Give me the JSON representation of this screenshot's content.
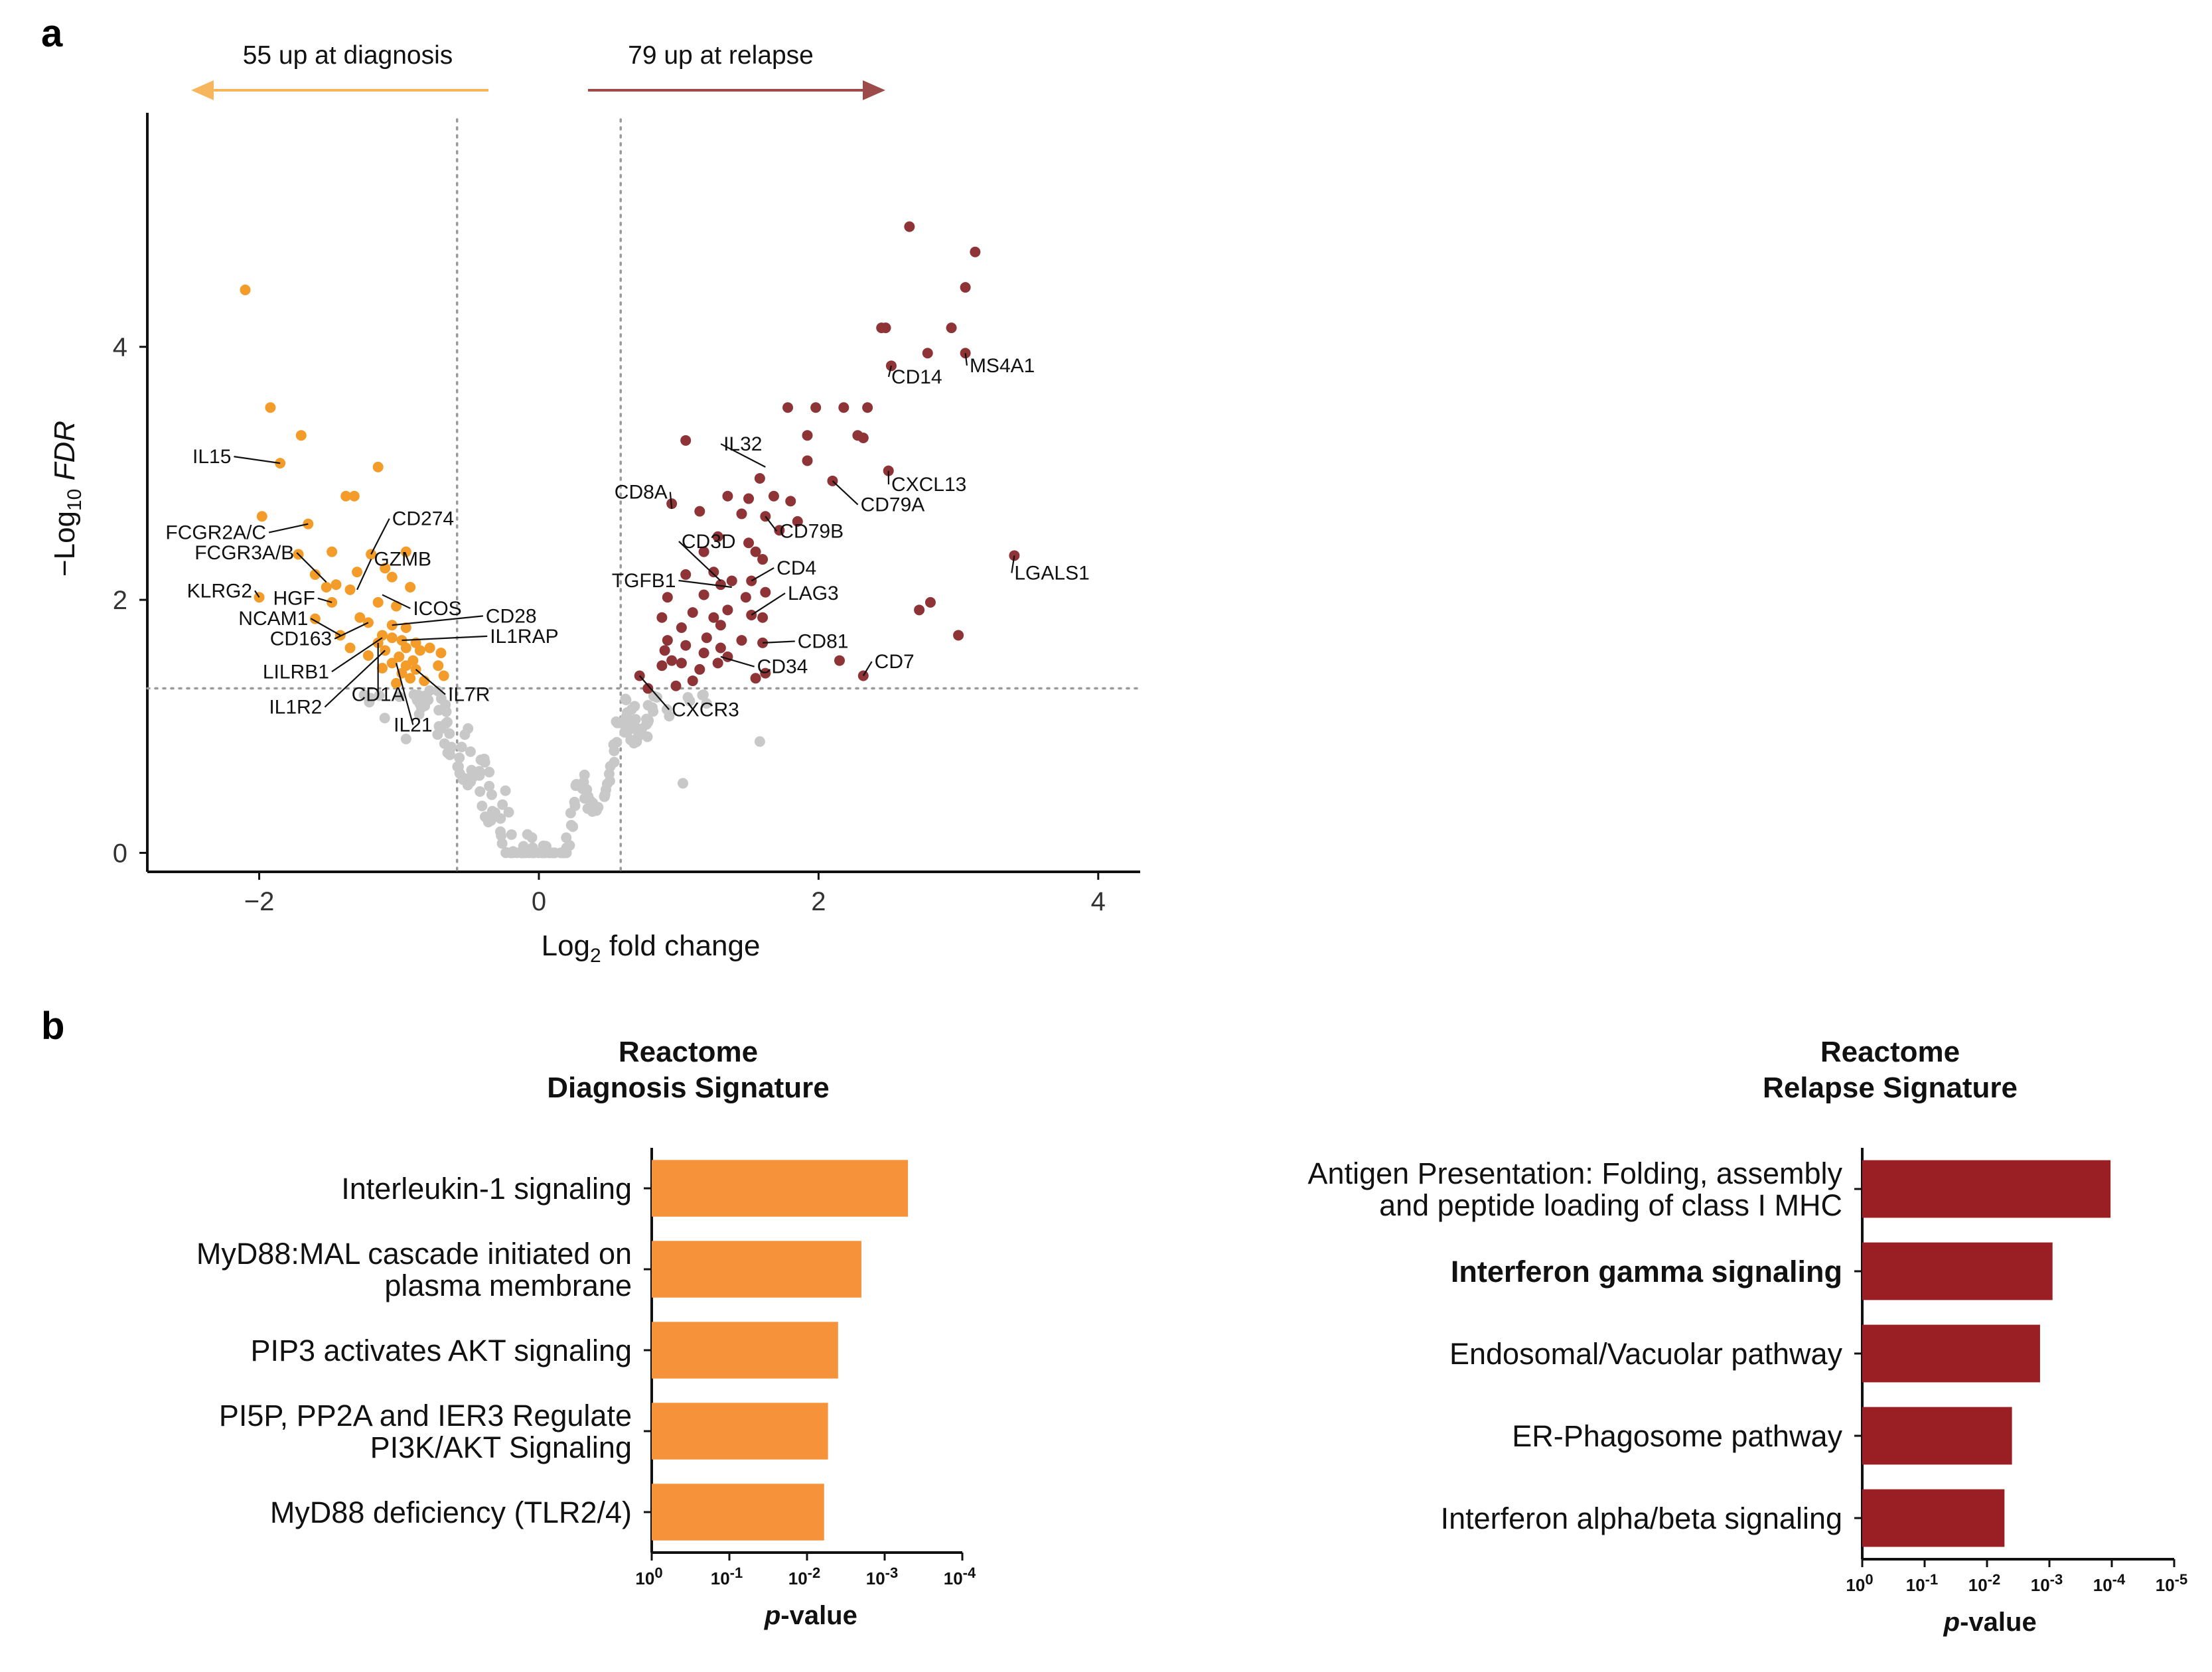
{
  "panels": {
    "a": "a",
    "b": "b"
  },
  "chart_data": [
    {
      "type": "scatter",
      "name": "volcano",
      "xlabel": "Log",
      "xlabel_sub": "2",
      "xlabel_rest": " fold change",
      "ylabel_prefix": "−Log",
      "ylabel_sub": "10",
      "ylabel_rest": "FDR",
      "xlim": [
        -2.8,
        4.3
      ],
      "ylim": [
        -0.15,
        5.85
      ],
      "xticks": [
        -2,
        0,
        2,
        4
      ],
      "yticks": [
        0,
        2,
        4
      ],
      "fc_threshold": 0.585,
      "fdr_threshold": 1.3,
      "arrows": {
        "left_label": "55 up at diagnosis",
        "right_label": "79 up at relapse",
        "left_color": "#F7B55E",
        "right_color": "#9C4A4A"
      },
      "colors": {
        "down": "#F39C2A",
        "up": "#8E3336",
        "ns": "#C8C8C8"
      },
      "down_points": [
        [
          -2.1,
          4.45
        ],
        [
          -1.92,
          3.52
        ],
        [
          -1.7,
          3.3
        ],
        [
          -1.85,
          3.08
        ],
        [
          -1.15,
          3.05
        ],
        [
          -1.38,
          2.82
        ],
        [
          -1.32,
          2.82
        ],
        [
          -1.98,
          2.66
        ],
        [
          -1.65,
          2.6
        ],
        [
          -1.72,
          2.36
        ],
        [
          -1.48,
          2.38
        ],
        [
          -1.2,
          2.36
        ],
        [
          -0.95,
          2.38
        ],
        [
          -1.6,
          2.2
        ],
        [
          -1.52,
          2.1
        ],
        [
          -1.45,
          2.12
        ],
        [
          -1.35,
          2.08
        ],
        [
          -1.3,
          2.22
        ],
        [
          -1.1,
          2.25
        ],
        [
          -1.05,
          2.18
        ],
        [
          -0.92,
          2.1
        ],
        [
          -2.0,
          2.02
        ],
        [
          -1.48,
          1.98
        ],
        [
          -1.15,
          1.98
        ],
        [
          -1.02,
          1.95
        ],
        [
          -1.6,
          1.85
        ],
        [
          -1.28,
          1.86
        ],
        [
          -1.22,
          1.82
        ],
        [
          -1.05,
          1.8
        ],
        [
          -0.95,
          1.78
        ],
        [
          -1.42,
          1.72
        ],
        [
          -1.12,
          1.72
        ],
        [
          -1.05,
          1.7
        ],
        [
          -0.98,
          1.68
        ],
        [
          -0.88,
          1.66
        ],
        [
          -1.15,
          1.66
        ],
        [
          -1.35,
          1.62
        ],
        [
          -1.1,
          1.6
        ],
        [
          -0.95,
          1.62
        ],
        [
          -0.85,
          1.6
        ],
        [
          -0.78,
          1.62
        ],
        [
          -0.7,
          1.58
        ],
        [
          -1.22,
          1.56
        ],
        [
          -1.0,
          1.55
        ],
        [
          -0.9,
          1.52
        ],
        [
          -1.05,
          1.5
        ],
        [
          -0.95,
          1.48
        ],
        [
          -0.72,
          1.48
        ],
        [
          -1.12,
          1.46
        ],
        [
          -0.88,
          1.45
        ],
        [
          -0.98,
          1.42
        ],
        [
          -0.68,
          1.4
        ],
        [
          -0.92,
          1.38
        ],
        [
          -0.82,
          1.36
        ],
        [
          -1.02,
          1.34
        ]
      ],
      "up_points": [
        [
          2.65,
          4.95
        ],
        [
          3.12,
          4.75
        ],
        [
          3.05,
          4.47
        ],
        [
          2.48,
          4.15
        ],
        [
          2.45,
          4.15
        ],
        [
          2.95,
          4.15
        ],
        [
          2.78,
          3.95
        ],
        [
          3.05,
          3.95
        ],
        [
          2.52,
          3.85
        ],
        [
          1.78,
          3.52
        ],
        [
          1.98,
          3.52
        ],
        [
          2.18,
          3.52
        ],
        [
          2.35,
          3.52
        ],
        [
          1.05,
          3.26
        ],
        [
          1.92,
          3.3
        ],
        [
          2.28,
          3.3
        ],
        [
          2.32,
          3.28
        ],
        [
          1.92,
          3.1
        ],
        [
          1.58,
          2.96
        ],
        [
          2.5,
          3.02
        ],
        [
          2.1,
          2.94
        ],
        [
          1.35,
          2.82
        ],
        [
          1.68,
          2.82
        ],
        [
          1.5,
          2.8
        ],
        [
          1.8,
          2.78
        ],
        [
          0.95,
          2.76
        ],
        [
          1.15,
          2.7
        ],
        [
          1.45,
          2.68
        ],
        [
          1.62,
          2.66
        ],
        [
          1.85,
          2.62
        ],
        [
          1.72,
          2.55
        ],
        [
          1.28,
          2.5
        ],
        [
          1.5,
          2.45
        ],
        [
          1.18,
          2.38
        ],
        [
          1.55,
          2.38
        ],
        [
          1.6,
          2.32
        ],
        [
          3.4,
          2.35
        ],
        [
          1.25,
          2.22
        ],
        [
          1.05,
          2.2
        ],
        [
          1.38,
          2.15
        ],
        [
          1.52,
          2.15
        ],
        [
          1.3,
          2.12
        ],
        [
          1.62,
          2.06
        ],
        [
          1.18,
          2.04
        ],
        [
          0.92,
          2.02
        ],
        [
          1.48,
          2.02
        ],
        [
          2.8,
          1.98
        ],
        [
          2.72,
          1.92
        ],
        [
          1.35,
          1.92
        ],
        [
          1.1,
          1.9
        ],
        [
          1.52,
          1.88
        ],
        [
          0.88,
          1.86
        ],
        [
          1.25,
          1.86
        ],
        [
          1.3,
          1.8
        ],
        [
          1.02,
          1.78
        ],
        [
          1.6,
          1.86
        ],
        [
          3.0,
          1.72
        ],
        [
          1.2,
          1.7
        ],
        [
          1.45,
          1.68
        ],
        [
          0.92,
          1.68
        ],
        [
          1.6,
          1.66
        ],
        [
          1.05,
          1.64
        ],
        [
          1.3,
          1.62
        ],
        [
          0.9,
          1.6
        ],
        [
          1.18,
          1.58
        ],
        [
          2.15,
          1.52
        ],
        [
          1.35,
          1.55
        ],
        [
          0.95,
          1.52
        ],
        [
          1.02,
          1.5
        ],
        [
          1.28,
          1.5
        ],
        [
          0.88,
          1.48
        ],
        [
          1.15,
          1.45
        ],
        [
          1.62,
          1.42
        ],
        [
          2.32,
          1.4
        ],
        [
          0.72,
          1.4
        ],
        [
          1.55,
          1.38
        ],
        [
          1.1,
          1.36
        ],
        [
          0.98,
          1.32
        ],
        [
          0.78,
          1.3
        ]
      ],
      "labels": [
        {
          "text": "IL15",
          "x": -2.2,
          "y": 3.08,
          "px": -1.85,
          "py": 3.08,
          "anchor": "end"
        },
        {
          "text": "FCGR2A/C",
          "x": -1.95,
          "y": 2.48,
          "px": -1.65,
          "py": 2.6,
          "anchor": "end"
        },
        {
          "text": "FCGR3A/B",
          "x": -1.75,
          "y": 2.32,
          "px": -1.52,
          "py": 2.14,
          "anchor": "end"
        },
        {
          "text": "KLRG2",
          "x": -2.05,
          "y": 2.02,
          "px": -2.0,
          "py": 2.02,
          "anchor": "end"
        },
        {
          "text": "HGF",
          "x": -1.6,
          "y": 1.96,
          "px": -1.48,
          "py": 1.98,
          "anchor": "end"
        },
        {
          "text": "NCAM1",
          "x": -1.65,
          "y": 1.8,
          "px": -1.42,
          "py": 1.72,
          "anchor": "end"
        },
        {
          "text": "CD163",
          "x": -1.48,
          "y": 1.64,
          "px": -1.22,
          "py": 1.82,
          "anchor": "end"
        },
        {
          "text": "LILRB1",
          "x": -1.5,
          "y": 1.38,
          "px": -1.12,
          "py": 1.7,
          "anchor": "end"
        },
        {
          "text": "IL1R2",
          "x": -1.55,
          "y": 1.1,
          "px": -1.1,
          "py": 1.6,
          "anchor": "end"
        },
        {
          "text": "CD1A",
          "x": -1.15,
          "y": 1.2,
          "px": -1.15,
          "py": 1.66,
          "anchor": "middle"
        },
        {
          "text": "IL21",
          "x": -0.9,
          "y": 0.96,
          "px": -1.02,
          "py": 1.5,
          "anchor": "middle"
        },
        {
          "text": "IL7R",
          "x": -0.65,
          "y": 1.2,
          "px": -0.88,
          "py": 1.45,
          "anchor": "start"
        },
        {
          "text": "CD274",
          "x": -1.05,
          "y": 2.59,
          "px": -1.2,
          "py": 2.36,
          "anchor": "start"
        },
        {
          "text": "GZMB",
          "x": -1.18,
          "y": 2.27,
          "px": -1.3,
          "py": 2.08,
          "anchor": "start"
        },
        {
          "text": "ICOS",
          "x": -0.9,
          "y": 1.88,
          "px": -1.12,
          "py": 2.04,
          "anchor": "start"
        },
        {
          "text": "CD28",
          "x": -0.38,
          "y": 1.82,
          "px": -1.05,
          "py": 1.8,
          "anchor": "start"
        },
        {
          "text": "IL1RAP",
          "x": -0.35,
          "y": 1.66,
          "px": -0.98,
          "py": 1.68,
          "anchor": "start"
        },
        {
          "text": "CD14",
          "x": 2.52,
          "y": 3.71,
          "px": 2.52,
          "py": 3.85,
          "anchor": "start"
        },
        {
          "text": "MS4A1",
          "x": 3.08,
          "y": 3.8,
          "px": 3.05,
          "py": 3.95,
          "anchor": "start"
        },
        {
          "text": "IL32",
          "x": 1.32,
          "y": 3.18,
          "px": 1.62,
          "py": 3.05,
          "anchor": "start"
        },
        {
          "text": "CXCL13",
          "x": 2.52,
          "y": 2.86,
          "px": 2.5,
          "py": 3.02,
          "anchor": "start"
        },
        {
          "text": "CD8A",
          "x": 0.92,
          "y": 2.8,
          "px": 0.95,
          "py": 2.72,
          "anchor": "end"
        },
        {
          "text": "CD79A",
          "x": 2.3,
          "y": 2.7,
          "px": 2.1,
          "py": 2.94,
          "anchor": "start"
        },
        {
          "text": "CD79B",
          "x": 1.72,
          "y": 2.49,
          "px": 1.62,
          "py": 2.66,
          "anchor": "start"
        },
        {
          "text": "CD3D",
          "x": 1.02,
          "y": 2.41,
          "px": 1.3,
          "py": 2.15,
          "anchor": "start"
        },
        {
          "text": "CD4",
          "x": 1.7,
          "y": 2.2,
          "px": 1.52,
          "py": 2.15,
          "anchor": "start"
        },
        {
          "text": "TGFB1",
          "x": 0.98,
          "y": 2.1,
          "px": 1.38,
          "py": 2.1,
          "anchor": "end"
        },
        {
          "text": "LAG3",
          "x": 1.78,
          "y": 2.0,
          "px": 1.52,
          "py": 1.88,
          "anchor": "start"
        },
        {
          "text": "LGALS1",
          "x": 3.4,
          "y": 2.16,
          "px": 3.4,
          "py": 2.35,
          "anchor": "start"
        },
        {
          "text": "CD81",
          "x": 1.85,
          "y": 1.62,
          "px": 1.6,
          "py": 1.66,
          "anchor": "start"
        },
        {
          "text": "CD7",
          "x": 2.4,
          "y": 1.46,
          "px": 2.32,
          "py": 1.4,
          "anchor": "start"
        },
        {
          "text": "CD34",
          "x": 1.56,
          "y": 1.42,
          "px": 1.3,
          "py": 1.55,
          "anchor": "start"
        },
        {
          "text": "CXCR3",
          "x": 0.95,
          "y": 1.08,
          "px": 0.72,
          "py": 1.4,
          "anchor": "start"
        }
      ]
    },
    {
      "type": "bar",
      "name": "diagnosis",
      "title_line1": "Reactome",
      "title_line2": "Diagnosis Signature",
      "xlabel_italic": "p",
      "xlabel_rest": "-value",
      "color": "#F5923A",
      "xmax_exp": 4,
      "xtick_exponents": [
        "0",
        "-1",
        "-2",
        "-3",
        "-4"
      ],
      "categories": [
        {
          "lines": [
            "Interleukin-1 signaling"
          ],
          "bold": false,
          "neg_log10_p": 3.3
        },
        {
          "lines": [
            "MyD88:MAL cascade initiated on",
            "plasma membrane"
          ],
          "bold": false,
          "neg_log10_p": 2.7
        },
        {
          "lines": [
            "PIP3 activates AKT signaling"
          ],
          "bold": false,
          "neg_log10_p": 2.4
        },
        {
          "lines": [
            "PI5P, PP2A and IER3 Regulate",
            "PI3K/AKT Signaling"
          ],
          "bold": false,
          "neg_log10_p": 2.27
        },
        {
          "lines": [
            "MyD88 deficiency (TLR2/4)"
          ],
          "bold": false,
          "neg_log10_p": 2.22
        }
      ]
    },
    {
      "type": "bar",
      "name": "relapse",
      "title_line1": "Reactome",
      "title_line2": "Relapse Signature",
      "xlabel_italic": "p",
      "xlabel_rest": "-value",
      "color": "#9A1F24",
      "xmax_exp": 5,
      "xtick_exponents": [
        "0",
        "-1",
        "-2",
        "-3",
        "-4",
        "-5"
      ],
      "categories": [
        {
          "lines": [
            "Antigen Presentation: Folding, assembly",
            "and peptide loading of class I MHC"
          ],
          "bold": false,
          "neg_log10_p": 3.98
        },
        {
          "lines": [
            "Interferon gamma signaling"
          ],
          "bold": true,
          "neg_log10_p": 3.05
        },
        {
          "lines": [
            "Endosomal/Vacuolar pathway"
          ],
          "bold": false,
          "neg_log10_p": 2.85
        },
        {
          "lines": [
            "ER-Phagosome pathway"
          ],
          "bold": false,
          "neg_log10_p": 2.4
        },
        {
          "lines": [
            "Interferon alpha/beta signaling"
          ],
          "bold": false,
          "neg_log10_p": 2.28
        }
      ]
    }
  ]
}
